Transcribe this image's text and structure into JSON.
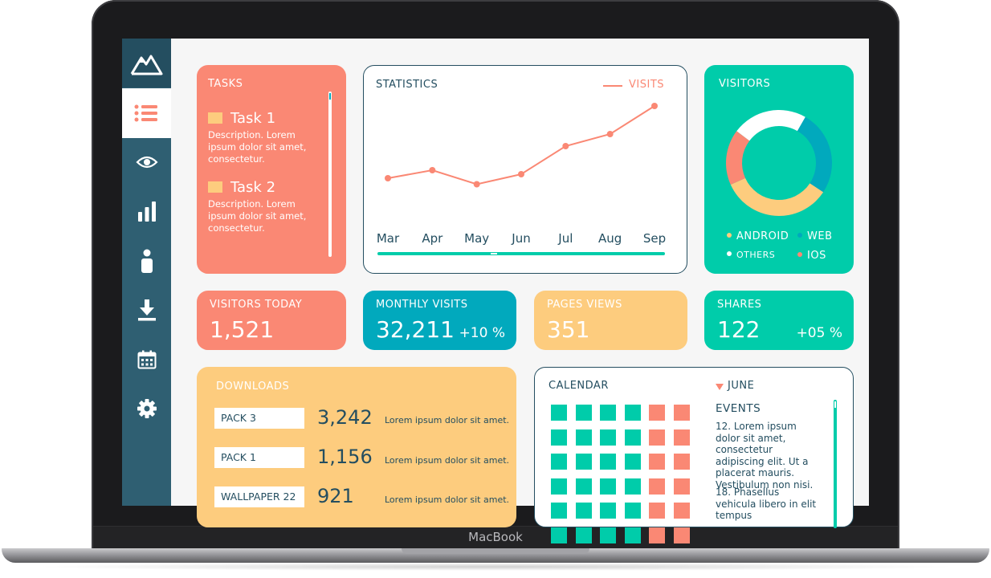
{
  "device": {
    "brand": "MacBook"
  },
  "sidebar": {
    "items": [
      {
        "icon": "mountain-logo-icon"
      },
      {
        "icon": "list-icon",
        "active": true
      },
      {
        "icon": "eye-icon"
      },
      {
        "icon": "bar-chart-icon"
      },
      {
        "icon": "user-icon"
      },
      {
        "icon": "download-icon"
      },
      {
        "icon": "calendar-icon"
      },
      {
        "icon": "gear-icon"
      }
    ]
  },
  "tasks": {
    "title": "TASKS",
    "items": [
      {
        "name": "Task 1",
        "description": "Description. Lorem ipsum dolor sit amet, consectetur."
      },
      {
        "name": "Task 2",
        "description": "Description. Lorem ipsum dolor sit amet, consectetur."
      }
    ]
  },
  "statistics": {
    "title": "STATISTICS",
    "legend": "VISITS",
    "chart_data": {
      "type": "line",
      "title": "STATISTICS",
      "x": [
        "Mar",
        "Apr",
        "May",
        "Jun",
        "Jul",
        "Aug",
        "Sep"
      ],
      "series": [
        {
          "name": "VISITS",
          "values": [
            20,
            24,
            17,
            22,
            36,
            42,
            56
          ]
        }
      ],
      "ylim": [
        0,
        60
      ],
      "grid": false,
      "legend_position": "top-right",
      "color": "#fa8874"
    }
  },
  "visitors": {
    "title": "VISITORS",
    "chart_data": {
      "type": "pie",
      "categories": [
        "ANDROID",
        "WEB",
        "OTHERS",
        "IOS"
      ],
      "values": [
        34,
        26,
        23,
        17
      ],
      "colors": [
        "#fdcc7e",
        "#01a9bd",
        "#ffffff",
        "#fa8874"
      ],
      "legend_position": "bottom"
    }
  },
  "stats": [
    {
      "label": "VISITORS TODAY",
      "value": "1,521",
      "change": ""
    },
    {
      "label": "MONTHLY VISITS",
      "value": "32,211",
      "change": "+10 %"
    },
    {
      "label": "PAGES VIEWS",
      "value": "351",
      "change": ""
    },
    {
      "label": "SHARES",
      "value": "122",
      "change": "+05 %"
    }
  ],
  "downloads": {
    "title": "DOWNLOADS",
    "rows": [
      {
        "name": "PACK 3",
        "count": "3,242",
        "description": "Lorem ipsum dolor sit amet."
      },
      {
        "name": "PACK 1",
        "count": "1,156",
        "description": "Lorem ipsum dolor sit amet."
      },
      {
        "name": "WALLPAPER 22",
        "count": "921",
        "description": "Lorem ipsum dolor sit amet."
      }
    ]
  },
  "calendar": {
    "title": "CALENDAR",
    "month": "JUNE",
    "events_title": "EVENTS",
    "events": [
      "12. Lorem ipsum dolor sit amet, consectetur adipiscing elit. Ut a placerat mauris. Vestibulum non nisi.",
      "18. Phasellus vehicula libero in elit tempus"
    ],
    "colors": {
      "weekday": "#00ccaa",
      "weekend": "#fa8874"
    }
  },
  "colors": {
    "coral": "#fa8874",
    "teal": "#00ccaa",
    "blue": "#01a9bd",
    "yellow": "#fdcc7e",
    "navy": "#244e60"
  }
}
